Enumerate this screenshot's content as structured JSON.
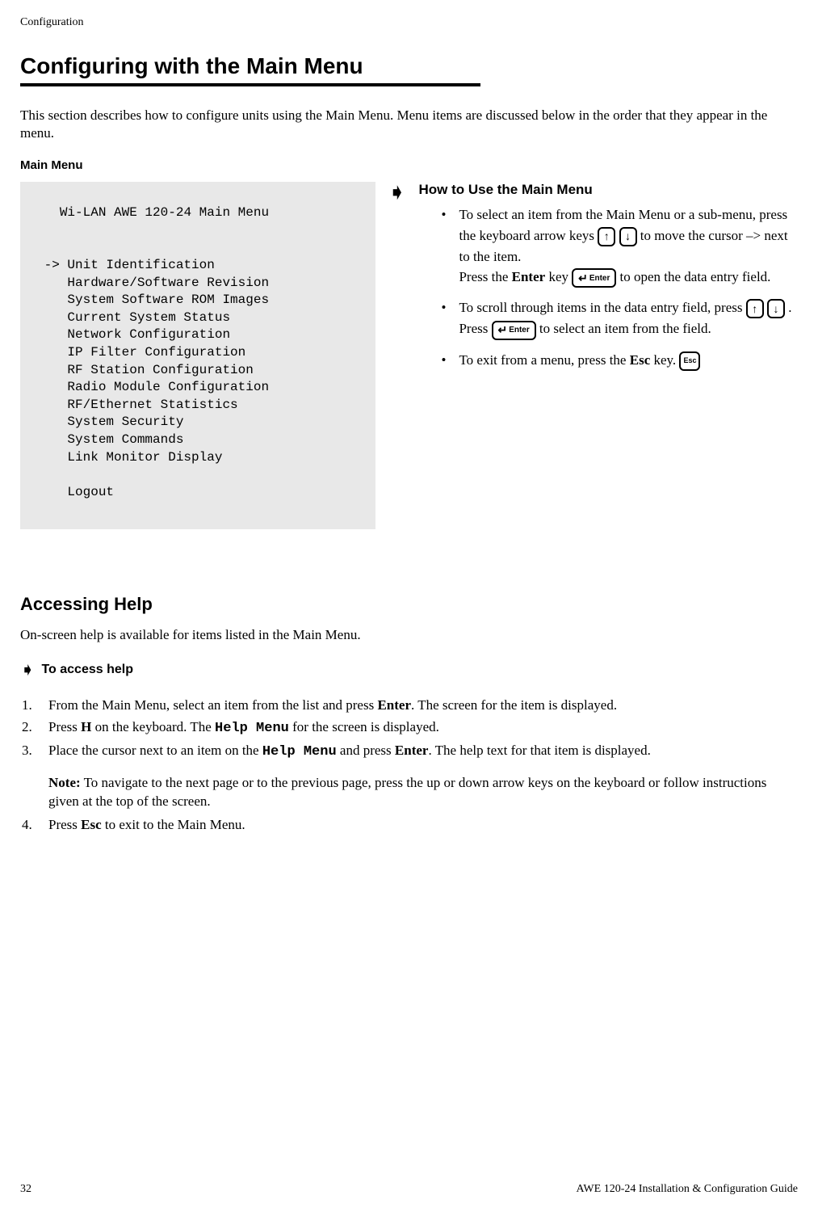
{
  "header": {
    "chapter": "Configuration"
  },
  "title": "Configuring with the Main Menu",
  "intro": "This section describes how to configure units using the Main Menu. Menu items are discussed below in the order that they appear in the menu.",
  "menu_label": "Main Menu",
  "menu": {
    "title": "Wi-LAN AWE 120-24 Main Menu",
    "cursor_prefix": "->",
    "items": [
      "Unit Identification",
      "Hardware/Software Revision",
      "System Software ROM Images",
      "Current System Status",
      "Network Configuration",
      "IP Filter Configuration",
      "RF Station Configuration",
      "Radio Module Configuration",
      "RF/Ethernet Statistics",
      "System Security",
      "System Commands",
      "Link Monitor Display"
    ],
    "logout": "Logout"
  },
  "how": {
    "title": "How to Use the Main Menu",
    "b1a": "To select an item from the Main Menu or a sub-menu, press the keyboard arrow keys ",
    "b1b": " to move the cursor –> next to the item.",
    "b1c": "Press the ",
    "b1d": " key ",
    "b1e": "  to open the data entry field.",
    "b2a": "To scroll through items in the data entry field, press  ",
    "b2b": " .",
    "b2c": "Press ",
    "b2d": " to select an item from the field.",
    "b3a": "To exit from a menu, press the ",
    "b3b": " key. ",
    "enter_label": "Enter",
    "esc_label": "Esc"
  },
  "help": {
    "title": "Accessing Help",
    "intro": "On-screen help is available for items listed in the Main Menu.",
    "to_access": "To access help",
    "s1a": "From the Main Menu, select an item from the list and press ",
    "s1b": ". The screen for the item is displayed.",
    "s2a": "Press ",
    "s2b": " on the keyboard. The ",
    "s2c": " for the screen is displayed.",
    "s3a": "Place the cursor next to an item on the ",
    "s3b": " and press ",
    "s3c": ". The help text for that item is displayed.",
    "note_label": "Note:",
    "note": " To navigate to the next page or to the previous page, press the up or down arrow keys on the keyboard or follow instructions given at the top of the screen.",
    "s4a": " Press ",
    "s4b": " to exit to the Main Menu.",
    "enter": "Enter",
    "h_key": "H",
    "help_menu": "Help Menu",
    "enter2": "Enter",
    "esc": "Esc"
  },
  "footer": {
    "page": "32",
    "doc": "AWE 120-24 Installation & Configuration Guide"
  },
  "icons": {
    "up": "↑",
    "down": "↓",
    "enter": "Enter",
    "esc": "Esc"
  }
}
